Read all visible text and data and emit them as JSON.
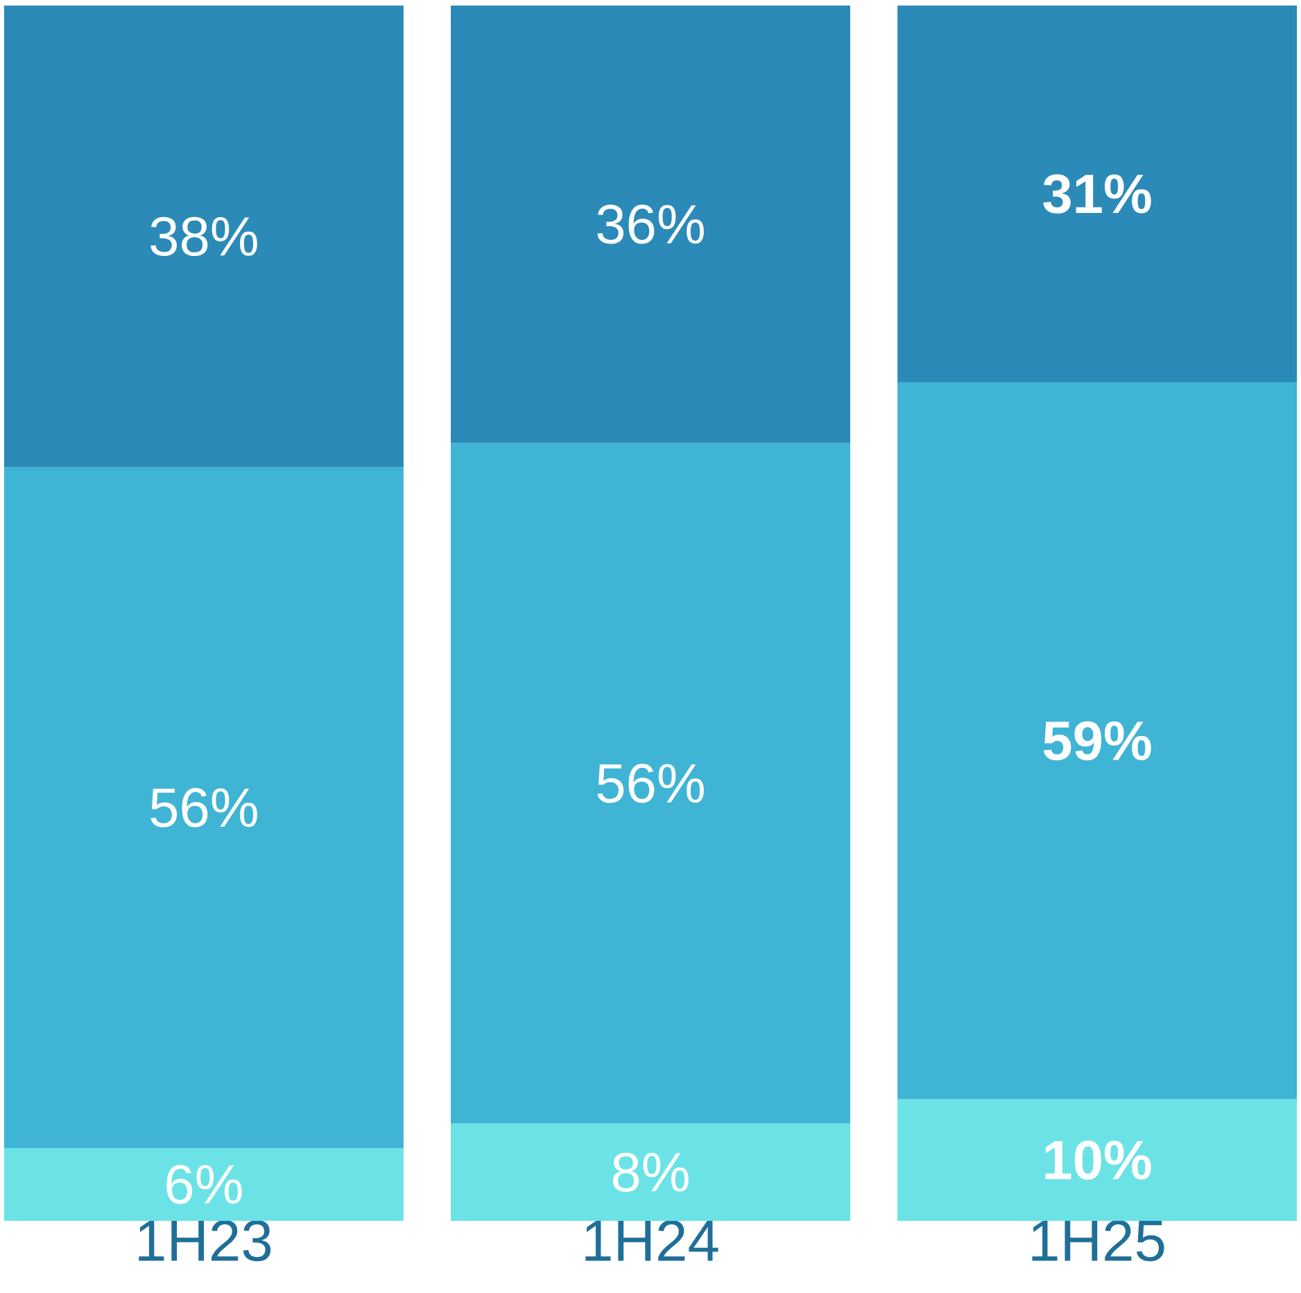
{
  "chart_data": {
    "type": "bar",
    "stacked": true,
    "categories": [
      "1H23",
      "1H24",
      "1H25"
    ],
    "series": [
      {
        "color": "#6be3e6",
        "values": [
          6,
          8,
          10
        ],
        "value_labels": [
          "6%",
          "8%",
          "**10%**"
        ]
      },
      {
        "color": "#40b4d4",
        "values": [
          56,
          56,
          59
        ],
        "value_labels": [
          "56%",
          "56%",
          "**59%**"
        ]
      },
      {
        "color": "#2b8ab8",
        "values": [
          38,
          36,
          31
        ],
        "value_labels": [
          "38%",
          "36%",
          "**31%**"
        ]
      }
    ]
  }
}
